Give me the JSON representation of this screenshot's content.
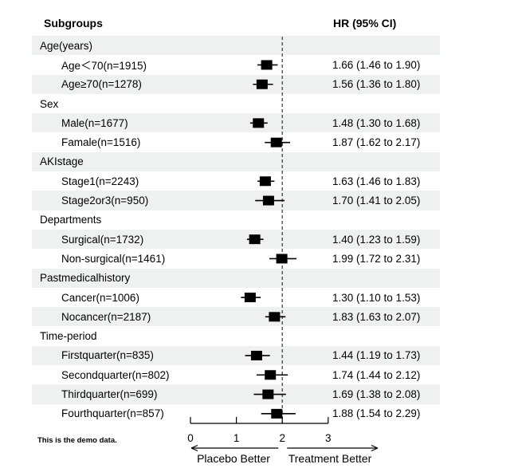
{
  "header": {
    "left": "Subgroups",
    "right": "HR (95% CI)"
  },
  "footnote": "This is the demo data.",
  "colors": {
    "band": "#eff1f1",
    "marker": "#000000",
    "reference_line": "#333333",
    "text": "#000000"
  },
  "chart_data": {
    "type": "forest",
    "title": "",
    "x_axis": {
      "range": [
        0,
        3
      ],
      "ticks": [
        0,
        1,
        2,
        3
      ],
      "tick_labels": [
        "0",
        "1",
        "2",
        "3"
      ],
      "reference_line": 2
    },
    "arrow_labels": {
      "left": "Placebo Better",
      "right": "Treatment Better"
    },
    "rows": [
      {
        "kind": "group",
        "shaded": true,
        "label": "Age(years)"
      },
      {
        "kind": "item",
        "shaded": false,
        "label": "Age＜70(n=1915)",
        "hr": 1.66,
        "low": 1.46,
        "high": 1.9,
        "hr_text": "1.66 (1.46 to 1.90)"
      },
      {
        "kind": "item",
        "shaded": true,
        "label": "Age≥70(n=1278)",
        "hr": 1.56,
        "low": 1.36,
        "high": 1.8,
        "hr_text": "1.56 (1.36 to 1.80)"
      },
      {
        "kind": "group",
        "shaded": false,
        "label": "Sex"
      },
      {
        "kind": "item",
        "shaded": true,
        "label": "Male(n=1677)",
        "hr": 1.48,
        "low": 1.3,
        "high": 1.68,
        "hr_text": "1.48 (1.30 to 1.68)"
      },
      {
        "kind": "item",
        "shaded": false,
        "label": "Famale(n=1516)",
        "hr": 1.87,
        "low": 1.62,
        "high": 2.17,
        "hr_text": "1.87 (1.62 to 2.17)"
      },
      {
        "kind": "group",
        "shaded": true,
        "label": "AKIstage"
      },
      {
        "kind": "item",
        "shaded": false,
        "label": "Stage1(n=2243)",
        "hr": 1.63,
        "low": 1.46,
        "high": 1.83,
        "hr_text": "1.63 (1.46 to 1.83)"
      },
      {
        "kind": "item",
        "shaded": true,
        "label": "Stage2or3(n=950)",
        "hr": 1.7,
        "low": 1.41,
        "high": 2.05,
        "hr_text": "1.70 (1.41 to 2.05)"
      },
      {
        "kind": "group",
        "shaded": false,
        "label": "Departments"
      },
      {
        "kind": "item",
        "shaded": true,
        "label": "Surgical(n=1732)",
        "hr": 1.4,
        "low": 1.23,
        "high": 1.59,
        "hr_text": "1.40 (1.23 to 1.59)"
      },
      {
        "kind": "item",
        "shaded": false,
        "label": "Non-surgical(n=1461)",
        "hr": 1.99,
        "low": 1.72,
        "high": 2.31,
        "hr_text": "1.99 (1.72 to 2.31)"
      },
      {
        "kind": "group",
        "shaded": true,
        "label": "Pastmedicalhistory"
      },
      {
        "kind": "item",
        "shaded": false,
        "label": "Cancer(n=1006)",
        "hr": 1.3,
        "low": 1.1,
        "high": 1.53,
        "hr_text": "1.30 (1.10 to 1.53)"
      },
      {
        "kind": "item",
        "shaded": true,
        "label": "Nocancer(n=2187)",
        "hr": 1.83,
        "low": 1.63,
        "high": 2.07,
        "hr_text": "1.83 (1.63 to 2.07)"
      },
      {
        "kind": "group",
        "shaded": false,
        "label": "Time-period"
      },
      {
        "kind": "item",
        "shaded": true,
        "label": "Firstquarter(n=835)",
        "hr": 1.44,
        "low": 1.19,
        "high": 1.73,
        "hr_text": "1.44 (1.19 to 1.73)"
      },
      {
        "kind": "item",
        "shaded": false,
        "label": "Secondquarter(n=802)",
        "hr": 1.74,
        "low": 1.44,
        "high": 2.12,
        "hr_text": "1.74 (1.44 to 2.12)"
      },
      {
        "kind": "item",
        "shaded": true,
        "label": "Thirdquarter(n=699)",
        "hr": 1.69,
        "low": 1.38,
        "high": 2.08,
        "hr_text": "1.69 (1.38 to 2.08)"
      },
      {
        "kind": "item",
        "shaded": false,
        "label": "Fourthquarter(n=857)",
        "hr": 1.88,
        "low": 1.54,
        "high": 2.29,
        "hr_text": "1.88 (1.54 to 2.29)"
      }
    ]
  }
}
